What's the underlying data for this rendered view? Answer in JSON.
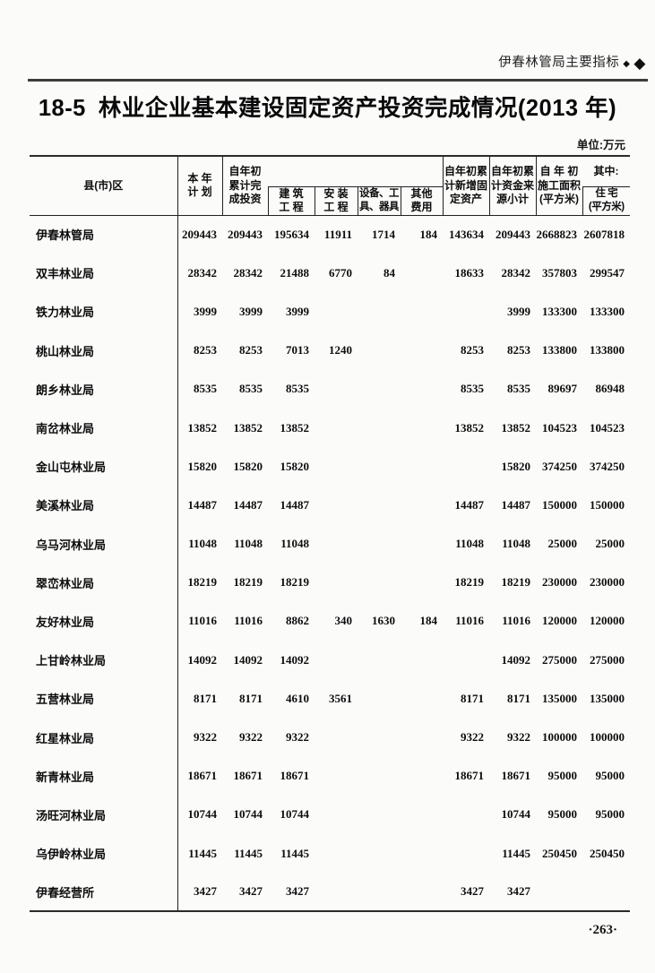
{
  "page": {
    "running_header": "伊春林管局主要指标",
    "diamond_small": "◆",
    "diamond_large": "◆",
    "title_number": "18-5",
    "title_text": "林业企业基本建设固定资产投资完成情况(2013 年)",
    "unit_label": "单位:万元",
    "page_number": "·263·"
  },
  "table": {
    "header": {
      "county": "县(市)区",
      "annual_plan": "本 年\n计 划",
      "cumulative_investment": "自年初\n累计完\n成投资",
      "construction_works": "建 筑\n工 程",
      "installation_works": "安 装\n工 程",
      "equipment_tools": "设备、工\n具、器具",
      "other_expenses": "其他\n费用",
      "new_fixed_assets": "自年初累\n计新增固\n定资产",
      "funding_subtotal": "自年初累\n计资金来\n源小计",
      "construction_area": "自 年 初\n施工面积\n(平方米)",
      "among_which": "其中:",
      "residential": "住 宅\n(平方米)"
    },
    "rows": [
      {
        "name": "伊春林管局",
        "values": [
          "209443",
          "209443",
          "195634",
          "11911",
          "1714",
          "184",
          "143634",
          "209443",
          "2668823",
          "2607818"
        ]
      },
      {
        "name": "双丰林业局",
        "values": [
          "28342",
          "28342",
          "21488",
          "6770",
          "84",
          "",
          "18633",
          "28342",
          "357803",
          "299547"
        ]
      },
      {
        "name": "铁力林业局",
        "values": [
          "3999",
          "3999",
          "3999",
          "",
          "",
          "",
          "",
          "3999",
          "133300",
          "133300"
        ]
      },
      {
        "name": "桃山林业局",
        "values": [
          "8253",
          "8253",
          "7013",
          "1240",
          "",
          "",
          "8253",
          "8253",
          "133800",
          "133800"
        ]
      },
      {
        "name": "朗乡林业局",
        "values": [
          "8535",
          "8535",
          "8535",
          "",
          "",
          "",
          "8535",
          "8535",
          "89697",
          "86948"
        ]
      },
      {
        "name": "南岔林业局",
        "values": [
          "13852",
          "13852",
          "13852",
          "",
          "",
          "",
          "13852",
          "13852",
          "104523",
          "104523"
        ]
      },
      {
        "name": "金山屯林业局",
        "values": [
          "15820",
          "15820",
          "15820",
          "",
          "",
          "",
          "",
          "15820",
          "374250",
          "374250"
        ]
      },
      {
        "name": "美溪林业局",
        "values": [
          "14487",
          "14487",
          "14487",
          "",
          "",
          "",
          "14487",
          "14487",
          "150000",
          "150000"
        ]
      },
      {
        "name": "乌马河林业局",
        "values": [
          "11048",
          "11048",
          "11048",
          "",
          "",
          "",
          "11048",
          "11048",
          "25000",
          "25000"
        ]
      },
      {
        "name": "翠峦林业局",
        "values": [
          "18219",
          "18219",
          "18219",
          "",
          "",
          "",
          "18219",
          "18219",
          "230000",
          "230000"
        ]
      },
      {
        "name": "友好林业局",
        "values": [
          "11016",
          "11016",
          "8862",
          "340",
          "1630",
          "184",
          "11016",
          "11016",
          "120000",
          "120000"
        ]
      },
      {
        "name": "上甘岭林业局",
        "values": [
          "14092",
          "14092",
          "14092",
          "",
          "",
          "",
          "",
          "14092",
          "275000",
          "275000"
        ]
      },
      {
        "name": "五营林业局",
        "values": [
          "8171",
          "8171",
          "4610",
          "3561",
          "",
          "",
          "8171",
          "8171",
          "135000",
          "135000"
        ]
      },
      {
        "name": "红星林业局",
        "values": [
          "9322",
          "9322",
          "9322",
          "",
          "",
          "",
          "9322",
          "9322",
          "100000",
          "100000"
        ]
      },
      {
        "name": "新青林业局",
        "values": [
          "18671",
          "18671",
          "18671",
          "",
          "",
          "",
          "18671",
          "18671",
          "95000",
          "95000"
        ]
      },
      {
        "name": "汤旺河林业局",
        "values": [
          "10744",
          "10744",
          "10744",
          "",
          "",
          "",
          "",
          "10744",
          "95000",
          "95000"
        ]
      },
      {
        "name": "乌伊岭林业局",
        "values": [
          "11445",
          "11445",
          "11445",
          "",
          "",
          "",
          "",
          "11445",
          "250450",
          "250450"
        ]
      },
      {
        "name": "伊春经营所",
        "values": [
          "3427",
          "3427",
          "3427",
          "",
          "",
          "",
          "3427",
          "3427",
          "",
          ""
        ]
      }
    ]
  }
}
